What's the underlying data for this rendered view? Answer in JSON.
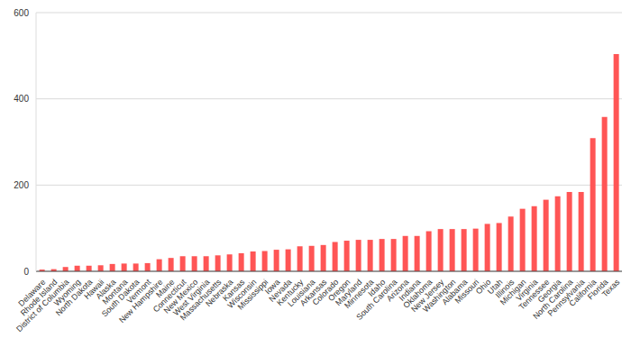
{
  "chart_data": {
    "type": "bar",
    "categories": [
      "Delaware",
      "Rhode Island",
      "District of Columbia",
      "Wyoming",
      "North Dakota",
      "Hawaii",
      "Alaska",
      "Montana",
      "South Dakota",
      "Vermont",
      "New Hampshire",
      "Maine",
      "Connecticut",
      "New Mexico",
      "West Virginia",
      "Massachusetts",
      "Nebraska",
      "Kansas",
      "Wisconsin",
      "Mississippi",
      "Iowa",
      "Nevada",
      "Kentucky",
      "Louisiana",
      "Arkansas",
      "Colorado",
      "Oregon",
      "Maryland",
      "Minnesota",
      "Idaho",
      "South Carolina",
      "Arizona",
      "Indiana",
      "Oklahoma",
      "New Jersey",
      "Washington",
      "Alabama",
      "Missouri",
      "Ohio",
      "Utah",
      "Illinois",
      "Michigan",
      "Virginia",
      "Tennessee",
      "Georgia",
      "North Carolina",
      "Pennsylvania",
      "California",
      "Florida",
      "Texas"
    ],
    "values": [
      4,
      5,
      10,
      13,
      13,
      14,
      17,
      18,
      18,
      19,
      28,
      31,
      35,
      35,
      35,
      37,
      39,
      42,
      46,
      47,
      50,
      51,
      58,
      59,
      61,
      68,
      71,
      73,
      73,
      75,
      75,
      82,
      82,
      93,
      98,
      98,
      98,
      99,
      110,
      112,
      127,
      145,
      151,
      166,
      174,
      184,
      184,
      309,
      358,
      504
    ],
    "color": "#ff5555",
    "ylim": [
      0,
      600
    ],
    "yticks": [
      0,
      200,
      400,
      600
    ],
    "grid": true
  }
}
